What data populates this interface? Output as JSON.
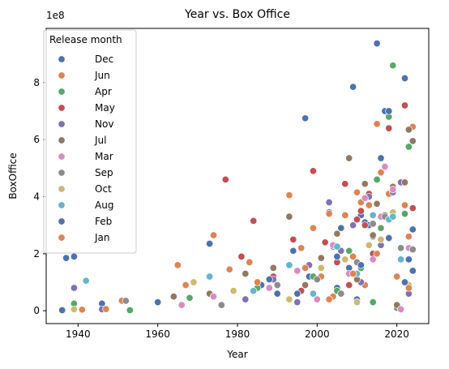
{
  "chart_data": {
    "type": "scatter",
    "title": "Year vs. Box Office",
    "xlabel": "Year",
    "ylabel": "BoxOffice",
    "y_offset_label": "1e8",
    "xlim": [
      1932,
      2028
    ],
    "ylim": [
      -0.45,
      9.9
    ],
    "x_ticks": [
      1940,
      1960,
      1980,
      2000,
      2020
    ],
    "y_ticks": [
      0,
      2,
      4,
      6,
      8
    ],
    "y_tick_labels": [
      "0",
      "2",
      "4",
      "6",
      "8"
    ],
    "y_unit_multiplier": 100000000,
    "grid": false,
    "legend": {
      "title": "Release month",
      "placement": "top-left"
    },
    "series": [
      {
        "name": "Dec",
        "color": "#4c72b0",
        "points": [
          [
            1936,
            0.02
          ],
          [
            1937,
            1.85
          ],
          [
            1939,
            1.9
          ],
          [
            1946,
            0.25
          ],
          [
            1997,
            6.75
          ],
          [
            2009,
            7.85
          ],
          [
            2015,
            9.37
          ],
          [
            2017,
            7.0
          ],
          [
            2022,
            8.15
          ],
          [
            1994,
            2.1
          ],
          [
            2003,
            3.45
          ],
          [
            2004,
            2.25
          ],
          [
            2006,
            2.9
          ],
          [
            2011,
            3.35
          ],
          [
            2012,
            3.1
          ],
          [
            2013,
            3.0
          ],
          [
            2014,
            2.6
          ],
          [
            2016,
            5.35
          ],
          [
            2018,
            2.55
          ],
          [
            2019,
            4.3
          ],
          [
            2024,
            2.85
          ],
          [
            1986,
            0.9
          ],
          [
            1990,
            0.6
          ],
          [
            1998,
            1.2
          ],
          [
            2005,
            0.8
          ],
          [
            2008,
            1.5
          ],
          [
            2010,
            0.4
          ],
          [
            2020,
            0.15
          ],
          [
            2023,
            1.8
          ]
        ]
      },
      {
        "name": "Jun",
        "color": "#dd8452",
        "points": [
          [
            1941,
            0.04
          ],
          [
            1951,
            0.35
          ],
          [
            1965,
            1.6
          ],
          [
            1974,
            2.65
          ],
          [
            1978,
            1.45
          ],
          [
            1983,
            1.7
          ],
          [
            1993,
            4.05
          ],
          [
            1999,
            2.9
          ],
          [
            2003,
            3.4
          ],
          [
            2007,
            3.35
          ],
          [
            2011,
            3.8
          ],
          [
            2015,
            6.55
          ],
          [
            2016,
            4.85
          ],
          [
            2018,
            4.1
          ],
          [
            2019,
            4.3
          ],
          [
            2022,
            3.7
          ],
          [
            2024,
            6.45
          ],
          [
            2010,
            4.15
          ],
          [
            2013,
            3.7
          ],
          [
            1996,
            2.2
          ],
          [
            2001,
            1.2
          ],
          [
            2004,
            0.5
          ],
          [
            2009,
            1.9
          ],
          [
            2012,
            0.9
          ],
          [
            2021,
            0.05
          ],
          [
            2023,
            2.6
          ]
        ]
      },
      {
        "name": "Apr",
        "color": "#55a868",
        "points": [
          [
            1939,
            0.25
          ],
          [
            1953,
            0.02
          ],
          [
            1968,
            0.45
          ],
          [
            1985,
            0.8
          ],
          [
            2015,
            4.6
          ],
          [
            2018,
            6.8
          ],
          [
            2019,
            8.6
          ],
          [
            2023,
            5.75
          ],
          [
            1999,
            1.2
          ],
          [
            2005,
            0.7
          ],
          [
            2008,
            2.1
          ],
          [
            2011,
            1.5
          ],
          [
            2014,
            0.3
          ],
          [
            2016,
            2.9
          ],
          [
            2020,
            0.1
          ],
          [
            2022,
            3.4
          ]
        ]
      },
      {
        "name": "May",
        "color": "#c44e52",
        "points": [
          [
            1977,
            4.6
          ],
          [
            1984,
            3.15
          ],
          [
            1999,
            4.9
          ],
          [
            2007,
            4.45
          ],
          [
            2010,
            3.2
          ],
          [
            2011,
            3.5
          ],
          [
            2013,
            4.1
          ],
          [
            2018,
            6.4
          ],
          [
            2022,
            7.2
          ],
          [
            2019,
            4.3
          ],
          [
            2016,
            3.3
          ],
          [
            2012,
            3.0
          ],
          [
            1994,
            2.5
          ],
          [
            1981,
            1.9
          ],
          [
            1989,
            1.2
          ],
          [
            1996,
            0.7
          ],
          [
            2002,
            2.4
          ],
          [
            2005,
            1.7
          ],
          [
            2008,
            0.9
          ],
          [
            2014,
            2.0
          ],
          [
            2024,
            3.6
          ]
        ]
      },
      {
        "name": "Nov",
        "color": "#8172b3",
        "points": [
          [
            1939,
            0.8
          ],
          [
            1946,
            0.05
          ],
          [
            1982,
            0.4
          ],
          [
            1995,
            0.3
          ],
          [
            2003,
            3.8
          ],
          [
            2013,
            4.0
          ],
          [
            2019,
            4.15
          ],
          [
            2021,
            4.5
          ],
          [
            2009,
            3.0
          ],
          [
            2016,
            2.3
          ],
          [
            1989,
            1.1
          ],
          [
            1998,
            1.6
          ],
          [
            2006,
            2.1
          ],
          [
            2011,
            1.0
          ],
          [
            2023,
            0.6
          ]
        ]
      },
      {
        "name": "Jul",
        "color": "#937860",
        "points": [
          [
            1964,
            0.5
          ],
          [
            1973,
            0.6
          ],
          [
            1982,
            1.3
          ],
          [
            1989,
            1.5
          ],
          [
            1993,
            3.3
          ],
          [
            2008,
            5.35
          ],
          [
            2012,
            4.45
          ],
          [
            2015,
            3.75
          ],
          [
            2017,
            3.35
          ],
          [
            2022,
            4.5
          ],
          [
            2023,
            6.35
          ],
          [
            2024,
            5.95
          ],
          [
            2019,
            4.35
          ],
          [
            2014,
            2.65
          ],
          [
            2001,
            1.85
          ],
          [
            2005,
            2.7
          ],
          [
            1997,
            0.9
          ],
          [
            2010,
            1.1
          ],
          [
            2020,
            0.2
          ]
        ]
      },
      {
        "name": "Mar",
        "color": "#da8bc3",
        "points": [
          [
            1966,
            0.2
          ],
          [
            1974,
            0.5
          ],
          [
            1988,
            0.8
          ],
          [
            2004,
            2.3
          ],
          [
            2012,
            3.95
          ],
          [
            2016,
            3.3
          ],
          [
            2017,
            5.05
          ],
          [
            2019,
            4.25
          ],
          [
            2021,
            0.05
          ],
          [
            2008,
            1.3
          ],
          [
            1995,
            1.4
          ],
          [
            2000,
            0.4
          ],
          [
            2014,
            1.8
          ],
          [
            2023,
            2.2
          ]
        ]
      },
      {
        "name": "Sep",
        "color": "#8c8c8c",
        "points": [
          [
            1952,
            0.35
          ],
          [
            1976,
            0.2
          ],
          [
            1990,
            0.9
          ],
          [
            2000,
            1.1
          ],
          [
            2014,
            3.05
          ],
          [
            2017,
            3.3
          ],
          [
            2019,
            3.35
          ],
          [
            2024,
            2.15
          ],
          [
            2006,
            0.6
          ],
          [
            2010,
            1.7
          ],
          [
            2021,
            2.2
          ]
        ]
      },
      {
        "name": "Oct",
        "color": "#ccb974",
        "points": [
          [
            1939,
            0.05
          ],
          [
            1969,
            1.0
          ],
          [
            1979,
            0.7
          ],
          [
            1993,
            0.4
          ],
          [
            2007,
            1.8
          ],
          [
            2013,
            2.3
          ],
          [
            2016,
            2.5
          ],
          [
            2019,
            3.45
          ],
          [
            2023,
            0.9
          ],
          [
            2001,
            1.5
          ],
          [
            2010,
            0.3
          ]
        ]
      },
      {
        "name": "Aug",
        "color": "#64b5cd",
        "points": [
          [
            1942,
            1.05
          ],
          [
            1973,
            1.2
          ],
          [
            1984,
            0.7
          ],
          [
            1993,
            1.6
          ],
          [
            2005,
            2.25
          ],
          [
            2014,
            3.35
          ],
          [
            2018,
            3.2
          ],
          [
            2019,
            3.3
          ],
          [
            2021,
            1.8
          ],
          [
            1999,
            0.6
          ],
          [
            2010,
            1.3
          ]
        ]
      },
      {
        "name": "Feb",
        "color": "#4c72b0",
        "points": [
          [
            1960,
            0.3
          ],
          [
            1973,
            2.35
          ],
          [
            1988,
            1.1
          ],
          [
            1995,
            0.6
          ],
          [
            2005,
            1.9
          ],
          [
            2011,
            1.6
          ],
          [
            2018,
            7.0
          ],
          [
            2022,
            1.0
          ],
          [
            2024,
            1.4
          ]
        ]
      },
      {
        "name": "Jan",
        "color": "#dd8452",
        "points": [
          [
            1947,
            0.06
          ],
          [
            1967,
            0.9
          ],
          [
            1985,
            1.0
          ],
          [
            1997,
            1.5
          ],
          [
            2009,
            1.3
          ],
          [
            2015,
            2.0
          ],
          [
            2020,
            1.2
          ],
          [
            2023,
            0.8
          ],
          [
            2003,
            0.4
          ]
        ]
      }
    ]
  }
}
